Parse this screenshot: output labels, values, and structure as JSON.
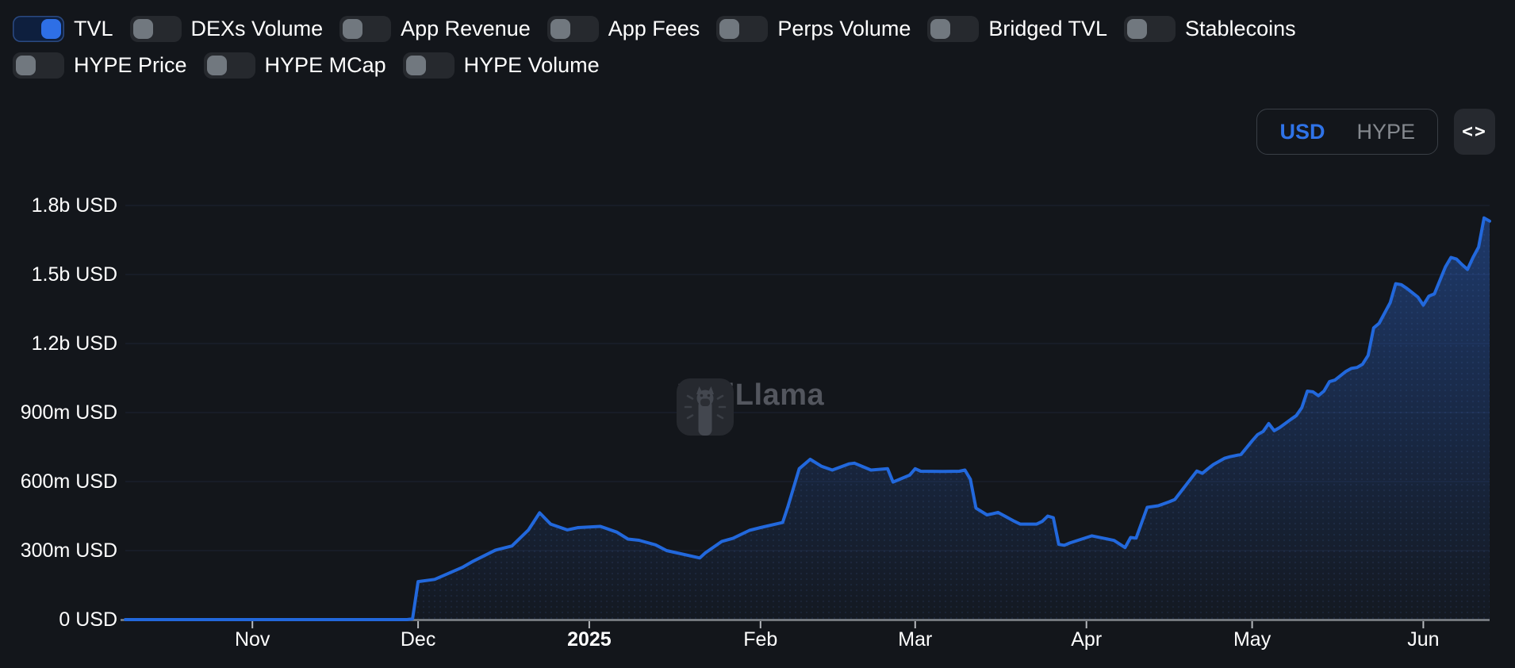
{
  "toggles": {
    "rows": [
      [
        {
          "label": "TVL",
          "on": true
        },
        {
          "label": "DEXs Volume",
          "on": false
        },
        {
          "label": "App Revenue",
          "on": false
        },
        {
          "label": "App Fees",
          "on": false
        },
        {
          "label": "Perps Volume",
          "on": false
        },
        {
          "label": "Bridged TVL",
          "on": false
        },
        {
          "label": "Stablecoins",
          "on": false
        }
      ],
      [
        {
          "label": "HYPE Price",
          "on": false
        },
        {
          "label": "HYPE MCap",
          "on": false
        },
        {
          "label": "HYPE Volume",
          "on": false
        }
      ]
    ]
  },
  "currency_switch": {
    "options": [
      {
        "label": "USD",
        "selected": true
      },
      {
        "label": "HYPE",
        "selected": false
      }
    ]
  },
  "embed_button": {
    "icon": "code-icon",
    "glyph": "<>"
  },
  "watermark": {
    "text": "DefiLlama",
    "logo_icon": "defillama-llama-logo"
  },
  "colors": {
    "background": "#13161b",
    "accent_blue": "#2e6fe6",
    "line_blue": "#2268dc",
    "selected_text_blue": "#2f73e8",
    "muted_text": "#85898f",
    "axis_gray": "#83878c",
    "gridline": "#1c2333",
    "watermark_gray": "#53565e",
    "toggle_off_bg": "#26292e",
    "toggle_knob_off": "#71787f"
  },
  "chart_data": {
    "type": "area",
    "title": "",
    "legend": "none",
    "grid": "horizontal-only",
    "x_domain": [
      "2024-10-09",
      "2025-06-13"
    ],
    "y_domain_millions_usd": [
      0,
      1800
    ],
    "y_ticks": [
      {
        "value_millions": 0,
        "label": "0 USD"
      },
      {
        "value_millions": 300,
        "label": "300m USD"
      },
      {
        "value_millions": 600,
        "label": "600m USD"
      },
      {
        "value_millions": 900,
        "label": "900m USD"
      },
      {
        "value_millions": 1200,
        "label": "1.2b USD"
      },
      {
        "value_millions": 1500,
        "label": "1.5b USD"
      },
      {
        "value_millions": 1800,
        "label": "1.8b USD"
      }
    ],
    "x_ticks": [
      {
        "date": "2024-11-01",
        "label": "Nov",
        "bold": false
      },
      {
        "date": "2024-12-01",
        "label": "Dec",
        "bold": false
      },
      {
        "date": "2025-01-01",
        "label": "2025",
        "bold": true
      },
      {
        "date": "2025-02-01",
        "label": "Feb",
        "bold": false
      },
      {
        "date": "2025-03-01",
        "label": "Mar",
        "bold": false
      },
      {
        "date": "2025-04-01",
        "label": "Apr",
        "bold": false
      },
      {
        "date": "2025-05-01",
        "label": "May",
        "bold": false
      },
      {
        "date": "2025-06-01",
        "label": "Jun",
        "bold": false
      }
    ],
    "series": [
      {
        "name": "TVL",
        "unit": "USD",
        "color": "#2268dc",
        "points_date_value_millions": [
          [
            "2024-10-09",
            0
          ],
          [
            "2024-10-20",
            0
          ],
          [
            "2024-11-01",
            0
          ],
          [
            "2024-11-10",
            0
          ],
          [
            "2024-11-20",
            0
          ],
          [
            "2024-11-29",
            0
          ],
          [
            "2024-11-30",
            3
          ],
          [
            "2024-12-01",
            165
          ],
          [
            "2024-12-04",
            175
          ],
          [
            "2024-12-09",
            227
          ],
          [
            "2024-12-11",
            254
          ],
          [
            "2024-12-15",
            302
          ],
          [
            "2024-12-18",
            320
          ],
          [
            "2024-12-21",
            390
          ],
          [
            "2024-12-23",
            464
          ],
          [
            "2024-12-25",
            415
          ],
          [
            "2024-12-28",
            390
          ],
          [
            "2024-12-30",
            400
          ],
          [
            "2025-01-03",
            405
          ],
          [
            "2025-01-06",
            380
          ],
          [
            "2025-01-08",
            350
          ],
          [
            "2025-01-10",
            345
          ],
          [
            "2025-01-13",
            325
          ],
          [
            "2025-01-15",
            300
          ],
          [
            "2025-01-21",
            268
          ],
          [
            "2025-01-22",
            290
          ],
          [
            "2025-01-25",
            340
          ],
          [
            "2025-01-27",
            353
          ],
          [
            "2025-01-30",
            388
          ],
          [
            "2025-02-01",
            400
          ],
          [
            "2025-02-05",
            422
          ],
          [
            "2025-02-06",
            494
          ],
          [
            "2025-02-08",
            656
          ],
          [
            "2025-02-10",
            697
          ],
          [
            "2025-02-12",
            667
          ],
          [
            "2025-02-14",
            650
          ],
          [
            "2025-02-17",
            677
          ],
          [
            "2025-02-18",
            680
          ],
          [
            "2025-02-21",
            650
          ],
          [
            "2025-02-24",
            656
          ],
          [
            "2025-02-25",
            598
          ],
          [
            "2025-02-28",
            628
          ],
          [
            "2025-03-01",
            656
          ],
          [
            "2025-03-02",
            645
          ],
          [
            "2025-03-06",
            644
          ],
          [
            "2025-03-09",
            645
          ],
          [
            "2025-03-10",
            650
          ],
          [
            "2025-03-11",
            610
          ],
          [
            "2025-03-12",
            485
          ],
          [
            "2025-03-14",
            455
          ],
          [
            "2025-03-15",
            460
          ],
          [
            "2025-03-16",
            466
          ],
          [
            "2025-03-19",
            427
          ],
          [
            "2025-03-20",
            415
          ],
          [
            "2025-03-23",
            415
          ],
          [
            "2025-03-24",
            427
          ],
          [
            "2025-03-25",
            450
          ],
          [
            "2025-03-26",
            443
          ],
          [
            "2025-03-27",
            327
          ],
          [
            "2025-03-28",
            323
          ],
          [
            "2025-03-29",
            333
          ],
          [
            "2025-04-02",
            364
          ],
          [
            "2025-04-04",
            354
          ],
          [
            "2025-04-06",
            344
          ],
          [
            "2025-04-08",
            313
          ],
          [
            "2025-04-09",
            357
          ],
          [
            "2025-04-10",
            354
          ],
          [
            "2025-04-12",
            488
          ],
          [
            "2025-04-14",
            495
          ],
          [
            "2025-04-16",
            512
          ],
          [
            "2025-04-17",
            522
          ],
          [
            "2025-04-21",
            646
          ],
          [
            "2025-04-22",
            636
          ],
          [
            "2025-04-23",
            656
          ],
          [
            "2025-04-24",
            674
          ],
          [
            "2025-04-26",
            701
          ],
          [
            "2025-04-27",
            708
          ],
          [
            "2025-04-29",
            718
          ],
          [
            "2025-05-01",
            777
          ],
          [
            "2025-05-02",
            804
          ],
          [
            "2025-05-03",
            818
          ],
          [
            "2025-05-04",
            852
          ],
          [
            "2025-05-05",
            821
          ],
          [
            "2025-05-06",
            835
          ],
          [
            "2025-05-08",
            870
          ],
          [
            "2025-05-09",
            887
          ],
          [
            "2025-05-10",
            921
          ],
          [
            "2025-05-11",
            993
          ],
          [
            "2025-05-12",
            990
          ],
          [
            "2025-05-13",
            973
          ],
          [
            "2025-05-14",
            993
          ],
          [
            "2025-05-15",
            1034
          ],
          [
            "2025-05-16",
            1041
          ],
          [
            "2025-05-18",
            1079
          ],
          [
            "2025-05-19",
            1092
          ],
          [
            "2025-05-20",
            1096
          ],
          [
            "2025-05-21",
            1110
          ],
          [
            "2025-05-22",
            1148
          ],
          [
            "2025-05-23",
            1268
          ],
          [
            "2025-05-24",
            1288
          ],
          [
            "2025-05-26",
            1378
          ],
          [
            "2025-05-27",
            1460
          ],
          [
            "2025-05-28",
            1456
          ],
          [
            "2025-05-29",
            1440
          ],
          [
            "2025-05-31",
            1402
          ],
          [
            "2025-06-01",
            1367
          ],
          [
            "2025-06-02",
            1406
          ],
          [
            "2025-06-03",
            1416
          ],
          [
            "2025-06-05",
            1533
          ],
          [
            "2025-06-06",
            1574
          ],
          [
            "2025-06-07",
            1567
          ],
          [
            "2025-06-08",
            1543
          ],
          [
            "2025-06-09",
            1522
          ],
          [
            "2025-06-10",
            1574
          ],
          [
            "2025-06-11",
            1619
          ],
          [
            "2025-06-12",
            1746
          ],
          [
            "2025-06-13",
            1732
          ]
        ]
      }
    ]
  }
}
